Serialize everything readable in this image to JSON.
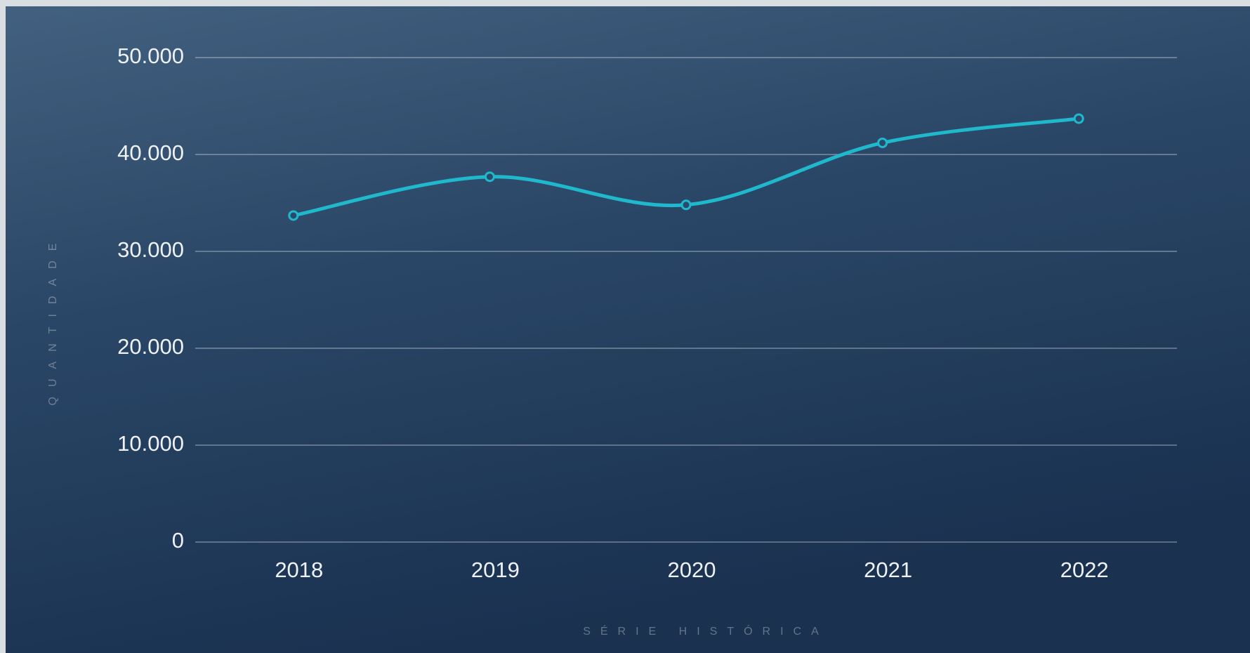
{
  "chart_data": {
    "type": "line",
    "x_label": "SÉRIE HISTÓRICA",
    "y_label": "QUANTIDADE",
    "categories": [
      "2018",
      "2019",
      "2020",
      "2021",
      "2022"
    ],
    "series": [
      {
        "name": "Quantidade",
        "color": "#1fb8cc",
        "values": [
          33700,
          37700,
          34800,
          41200,
          43700
        ]
      }
    ],
    "ylim": [
      0,
      50000
    ],
    "yticks": [
      0,
      {
        "value": 10000,
        "label": "10.000"
      },
      {
        "value": 20000,
        "label": "20.000"
      },
      {
        "value": 30000,
        "label": "30.000"
      },
      {
        "value": 40000,
        "label": "40.000"
      },
      {
        "value": 50000,
        "label": "50.000"
      }
    ],
    "grid": true,
    "smooth": true
  }
}
